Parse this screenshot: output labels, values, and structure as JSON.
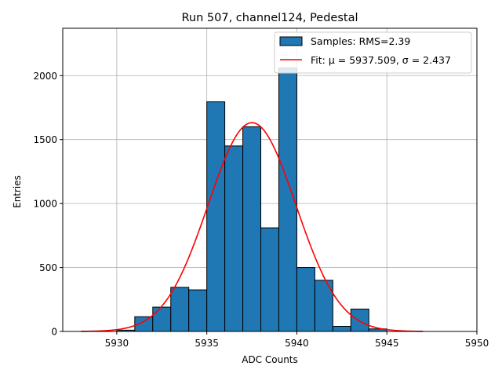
{
  "chart_data": {
    "type": "histogram",
    "title": "Run 507, channel124, Pedestal",
    "xlabel": "ADC Counts",
    "ylabel": "Entries",
    "xlim": [
      5927,
      5950
    ],
    "ylim": [
      0,
      2370
    ],
    "grid": true,
    "bin_width": 1,
    "bins": [
      {
        "start": 5930,
        "value": 10
      },
      {
        "start": 5931,
        "value": 115
      },
      {
        "start": 5932,
        "value": 190
      },
      {
        "start": 5933,
        "value": 345
      },
      {
        "start": 5934,
        "value": 325
      },
      {
        "start": 5935,
        "value": 1795
      },
      {
        "start": 5936,
        "value": 1450
      },
      {
        "start": 5937,
        "value": 1600
      },
      {
        "start": 5938,
        "value": 810
      },
      {
        "start": 5939,
        "value": 2060
      },
      {
        "start": 5940,
        "value": 500
      },
      {
        "start": 5941,
        "value": 400
      },
      {
        "start": 5942,
        "value": 40
      },
      {
        "start": 5943,
        "value": 175
      },
      {
        "start": 5944,
        "value": 20
      }
    ],
    "fit": {
      "mu": 5937.509,
      "sigma": 2.437,
      "amplitude": 1632,
      "x_range": [
        5928,
        5947
      ]
    },
    "x_ticks": [
      5930,
      5935,
      5940,
      5945,
      5950
    ],
    "x_tick_labels": [
      "5930",
      "5935",
      "5940",
      "5945",
      "5950"
    ],
    "y_ticks": [
      0,
      500,
      1000,
      1500,
      2000
    ],
    "y_tick_labels": [
      "0",
      "500",
      "1000",
      "1500",
      "2000"
    ],
    "legend": {
      "position": "top-right",
      "entries": [
        {
          "label": "Samples: RMS=2.39",
          "kind": "patch",
          "color": "#1f77b4"
        },
        {
          "label": "Fit: μ = 5937.509, σ = 2.437",
          "kind": "line",
          "color": "#ff0000"
        }
      ]
    },
    "colors": {
      "bar_fill": "#1f77b4",
      "bar_edge": "#000000",
      "fit_line": "#ff0000",
      "grid": "#b0b0b0"
    }
  }
}
